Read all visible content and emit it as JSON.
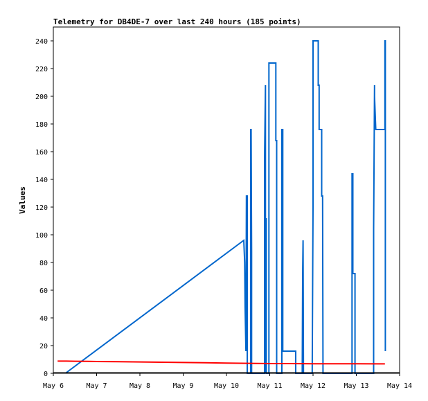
{
  "chart_data": {
    "type": "line",
    "title": "Telemetry for DB4DE-7 over last 240 hours (185 points)",
    "xlabel": "",
    "ylabel": "Values",
    "x_unit": "days",
    "xlim": [
      6.0,
      14.0
    ],
    "ylim": [
      0,
      250
    ],
    "x_ticks": [
      {
        "value": 6,
        "label": "May 6"
      },
      {
        "value": 7,
        "label": "May 7"
      },
      {
        "value": 8,
        "label": "May 8"
      },
      {
        "value": 9,
        "label": "May 9"
      },
      {
        "value": 10,
        "label": "May 10"
      },
      {
        "value": 11,
        "label": "May 11"
      },
      {
        "value": 12,
        "label": "May 12"
      },
      {
        "value": 13,
        "label": "May 13"
      },
      {
        "value": 14,
        "label": "May 14"
      }
    ],
    "y_ticks": [
      0,
      20,
      40,
      60,
      80,
      100,
      120,
      140,
      160,
      180,
      200,
      220,
      240
    ],
    "grid": false,
    "series": [
      {
        "color": "#0066cc",
        "x": [
          6.28,
          10.4,
          10.42,
          10.43,
          10.45,
          10.46,
          10.47,
          10.48,
          10.48,
          10.56,
          10.56,
          10.57,
          10.58,
          10.58,
          10.59,
          10.59,
          10.6,
          10.61,
          10.62,
          10.88,
          10.88,
          10.9,
          10.9,
          10.92,
          10.92,
          10.93,
          10.94,
          10.95,
          10.96,
          10.98,
          10.98,
          11.14,
          11.14,
          11.16,
          11.16,
          11.28,
          11.28,
          11.3,
          11.3,
          11.32,
          11.32,
          11.35,
          11.35,
          11.6,
          11.6,
          11.75,
          11.76,
          11.77,
          11.78,
          11.79,
          11.8,
          11.81,
          11.82,
          11.82,
          11.98,
          12.0,
          12.0,
          12.01,
          12.01,
          12.12,
          12.12,
          12.14,
          12.14,
          12.2,
          12.2,
          12.22,
          12.23,
          12.25,
          12.25,
          12.9,
          12.9,
          12.92,
          12.92,
          12.97,
          12.97,
          13.4,
          13.4,
          13.42,
          13.42,
          13.44,
          13.45,
          13.46,
          13.46,
          13.66,
          13.66,
          13.67,
          13.67
        ],
        "values": [
          0,
          96,
          80,
          48,
          16,
          128,
          128,
          128,
          0,
          0,
          176,
          176,
          88,
          0,
          0,
          0,
          0,
          0,
          0,
          0,
          156,
          208,
          0,
          112,
          0,
          0,
          0,
          0,
          0,
          0,
          224,
          224,
          168,
          168,
          0,
          0,
          176,
          176,
          16,
          16,
          16,
          16,
          16,
          16,
          0,
          0,
          72,
          96,
          0,
          0,
          0,
          0,
          0,
          0,
          0,
          120,
          240,
          240,
          240,
          240,
          208,
          208,
          176,
          176,
          128,
          128,
          0,
          0,
          0,
          0,
          144,
          144,
          72,
          72,
          0,
          0,
          104,
          208,
          200,
          184,
          176,
          176,
          176,
          176,
          240,
          240,
          16
        ]
      },
      {
        "color": "#ff0000",
        "x": [
          6.1,
          6.3,
          6.5,
          6.8,
          7.0,
          7.5,
          8.0,
          8.5,
          9.0,
          9.5,
          10.0,
          10.5,
          11.0,
          11.5,
          12.0,
          12.5,
          13.0,
          13.5,
          13.66
        ],
        "values": [
          8.8,
          8.8,
          8.7,
          8.6,
          8.5,
          8.4,
          8.2,
          8.0,
          7.8,
          7.6,
          7.4,
          7.2,
          7.0,
          7.0,
          6.9,
          6.9,
          6.9,
          6.8,
          6.8
        ]
      }
    ]
  }
}
